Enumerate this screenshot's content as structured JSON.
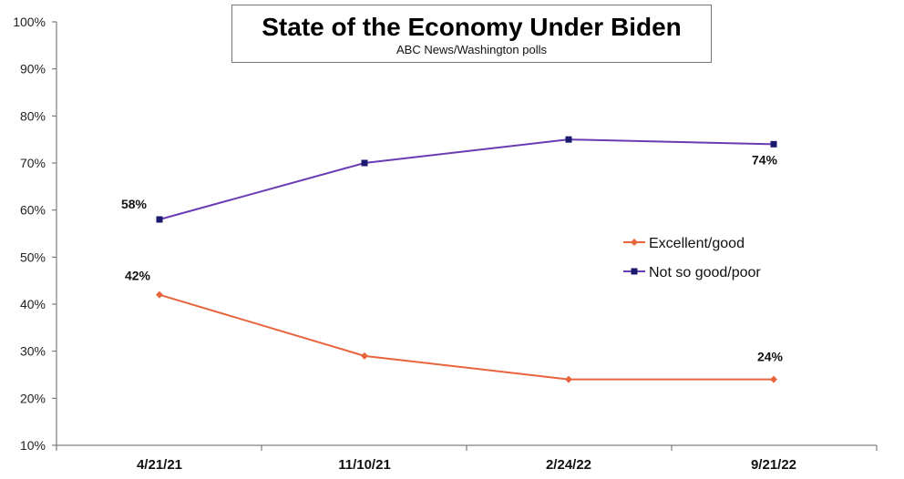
{
  "chart_data": {
    "type": "line",
    "title": "State of the Economy Under Biden",
    "subtitle": "ABC News/Washington polls",
    "categories": [
      "4/21/21",
      "11/10/21",
      "2/24/22",
      "9/21/22"
    ],
    "ylim": [
      10,
      100
    ],
    "yticks": [
      "10%",
      "20%",
      "30%",
      "40%",
      "50%",
      "60%",
      "70%",
      "80%",
      "90%",
      "100%"
    ],
    "legend_position": "right",
    "grid": false,
    "series": [
      {
        "name": "Excellent/good",
        "values": [
          42,
          29,
          24,
          24
        ],
        "color": "#e8643c",
        "marker": "diamond",
        "labels": [
          "42%",
          "",
          "",
          "24%"
        ]
      },
      {
        "name": "Not so good/poor",
        "values": [
          58,
          70,
          75,
          74
        ],
        "color": "#6a3cb4",
        "marker_color": "#1a1a6e",
        "marker": "square",
        "labels": [
          "58%",
          "",
          "",
          "74%"
        ]
      }
    ]
  }
}
